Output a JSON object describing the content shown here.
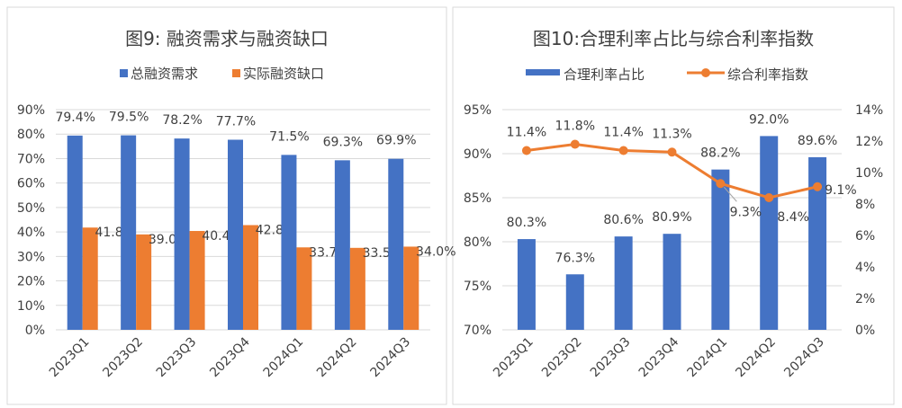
{
  "chart_data": [
    {
      "type": "bar",
      "title": "图9: 融资需求与融资缺口",
      "categories": [
        "2023Q1",
        "2023Q2",
        "2023Q3",
        "2023Q4",
        "2024Q1",
        "2024Q2",
        "2024Q3"
      ],
      "series": [
        {
          "name": "总融资需求",
          "color": "#4472C4",
          "values": [
            79.4,
            79.5,
            78.2,
            77.7,
            71.5,
            69.3,
            69.9
          ],
          "labels": [
            "79.4%",
            "79.5%",
            "78.2%",
            "77.7%",
            "71.5%",
            "69.3%",
            "69.9%"
          ]
        },
        {
          "name": "实际融资缺口",
          "color": "#ED7D31",
          "values": [
            41.8,
            39.0,
            40.4,
            42.8,
            33.7,
            33.5,
            34.0
          ],
          "labels": [
            "41.8%",
            "39.0%",
            "40.4%",
            "42.8%",
            "33.7%",
            "33.5%",
            "34.0%"
          ]
        }
      ],
      "ylim": [
        0,
        90
      ],
      "yticks": [
        "0%",
        "10%",
        "20%",
        "30%",
        "40%",
        "50%",
        "60%",
        "70%",
        "80%",
        "90%"
      ],
      "legend": "top",
      "grid": true
    },
    {
      "type": "bar+line",
      "title": "图10:合理利率占比与综合利率指数",
      "categories": [
        "2023Q1",
        "2023Q2",
        "2023Q3",
        "2023Q4",
        "2024Q1",
        "2024Q2",
        "2024Q3"
      ],
      "series": [
        {
          "name": "合理利率占比",
          "type": "bar",
          "axis": "left",
          "color": "#4472C4",
          "values": [
            80.3,
            76.3,
            80.6,
            80.9,
            88.2,
            92.0,
            89.6
          ],
          "labels": [
            "80.3%",
            "76.3%",
            "80.6%",
            "80.9%",
            "88.2%",
            "92.0%",
            "89.6%"
          ]
        },
        {
          "name": "综合利率指数",
          "type": "line",
          "axis": "right",
          "color": "#ED7D31",
          "values": [
            11.4,
            11.8,
            11.4,
            11.3,
            9.3,
            8.4,
            9.1
          ],
          "labels": [
            "11.4%",
            "11.8%",
            "11.4%",
            "11.3%",
            "9.3%",
            "8.4%",
            "9.1%"
          ]
        }
      ],
      "ylim_left": [
        70,
        95
      ],
      "yticks_left": [
        "70%",
        "75%",
        "80%",
        "85%",
        "90%",
        "95%"
      ],
      "ylim_right": [
        0,
        14
      ],
      "yticks_right": [
        "0%",
        "2%",
        "4%",
        "6%",
        "8%",
        "10%",
        "12%",
        "14%"
      ],
      "legend": "top",
      "grid": true
    }
  ]
}
